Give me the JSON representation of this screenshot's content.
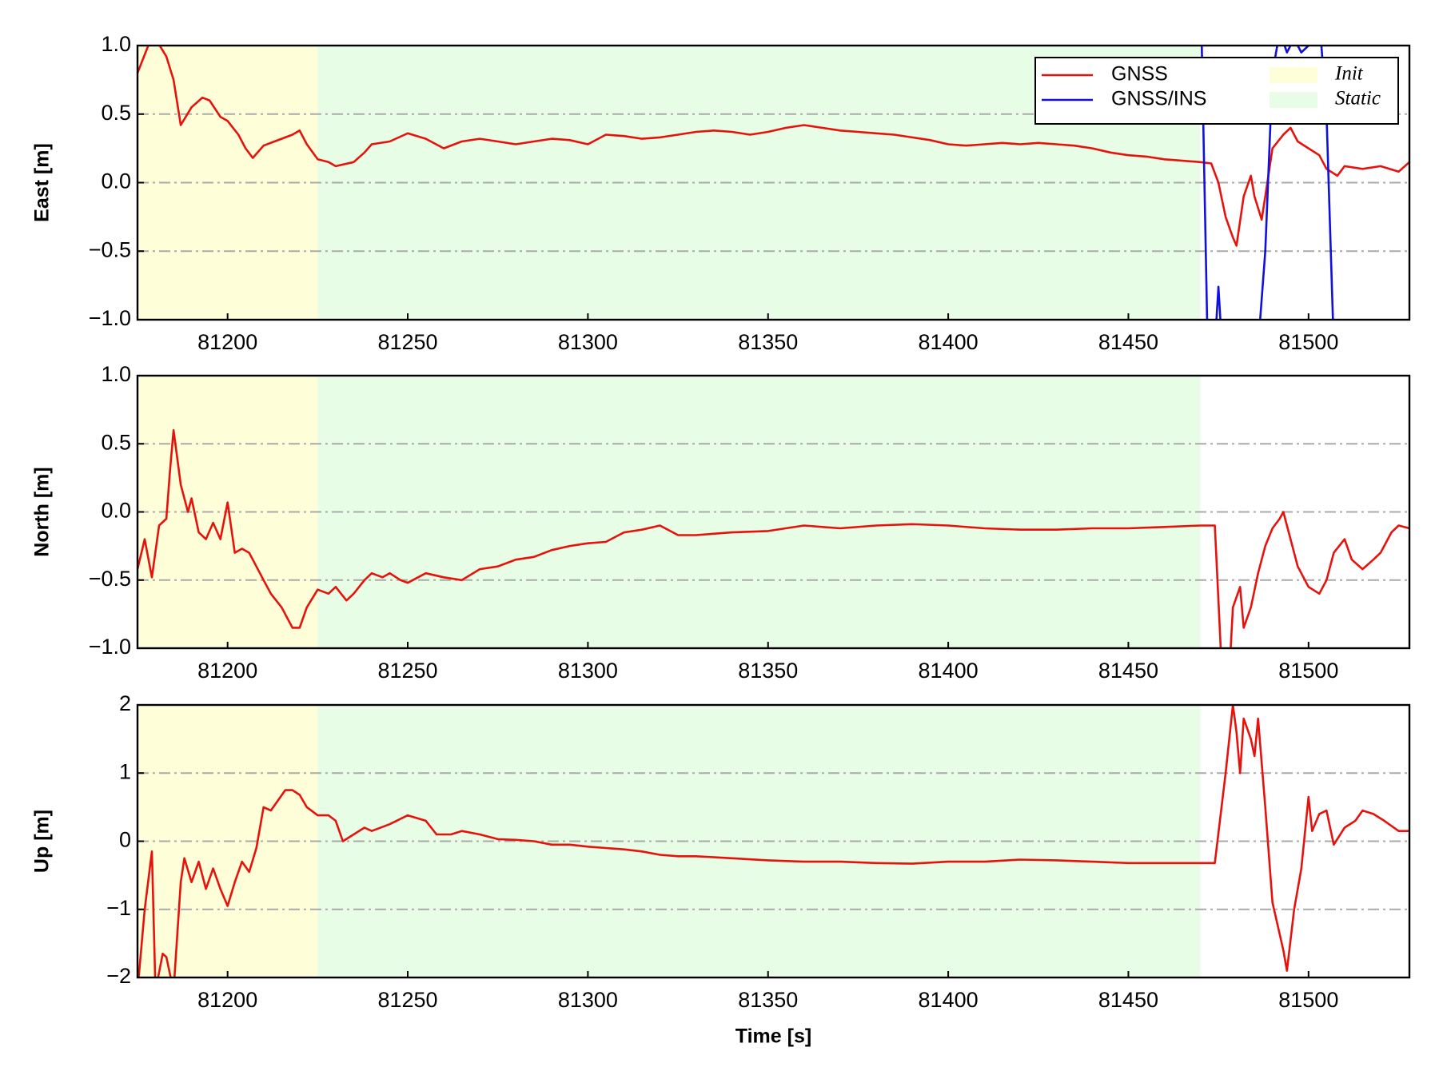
{
  "chart_data": [
    {
      "type": "line",
      "ylabel": "East [m]",
      "xlim": [
        81175,
        81528
      ],
      "xticks": [
        81200,
        81250,
        81300,
        81350,
        81400,
        81450,
        81500
      ],
      "ylim": [
        -1,
        1
      ],
      "yticks": [
        {
          "value": -1,
          "label": "−1.0"
        },
        {
          "value": -0.5,
          "label": "−0.5"
        },
        {
          "value": 0,
          "label": "0.0"
        },
        {
          "value": 0.5,
          "label": "0.5"
        },
        {
          "value": 1,
          "label": "1.0"
        }
      ],
      "grid": true,
      "legend": "upper right",
      "spans": [
        {
          "name": "Init",
          "start": 81175,
          "end": 81225,
          "color": "#fefed8"
        },
        {
          "name": "Static",
          "start": 81225,
          "end": 81470,
          "color": "#e8fde5"
        }
      ],
      "series": [
        {
          "name": "GNSS",
          "color": "#e8120c",
          "x": [
            81175,
            81178,
            81180,
            81183,
            81185,
            81187,
            81190,
            81193,
            81195,
            81198,
            81200,
            81203,
            81205,
            81207,
            81210,
            81213,
            81215,
            81218,
            81220,
            81222,
            81225,
            81228,
            81230,
            81235,
            81238,
            81240,
            81245,
            81250,
            81255,
            81260,
            81265,
            81270,
            81275,
            81280,
            81285,
            81290,
            81295,
            81300,
            81305,
            81310,
            81315,
            81320,
            81325,
            81330,
            81335,
            81340,
            81345,
            81350,
            81355,
            81360,
            81365,
            81370,
            81375,
            81380,
            81385,
            81390,
            81395,
            81400,
            81405,
            81410,
            81415,
            81420,
            81425,
            81430,
            81435,
            81440,
            81445,
            81450,
            81455,
            81460,
            81465,
            81470,
            81473,
            81475,
            81477,
            81479,
            81480,
            81482,
            81484,
            81485,
            81487,
            81488,
            81490,
            81493,
            81495,
            81497,
            81500,
            81503,
            81505,
            81508,
            81510,
            81515,
            81520,
            81525,
            81528
          ],
          "values": [
            0.8,
            1.0,
            1.05,
            0.92,
            0.75,
            0.42,
            0.55,
            0.62,
            0.6,
            0.48,
            0.45,
            0.35,
            0.25,
            0.18,
            0.27,
            0.3,
            0.32,
            0.35,
            0.38,
            0.28,
            0.17,
            0.15,
            0.12,
            0.15,
            0.22,
            0.28,
            0.3,
            0.36,
            0.32,
            0.25,
            0.3,
            0.32,
            0.3,
            0.28,
            0.3,
            0.32,
            0.31,
            0.28,
            0.35,
            0.34,
            0.32,
            0.33,
            0.35,
            0.37,
            0.38,
            0.37,
            0.35,
            0.37,
            0.4,
            0.42,
            0.4,
            0.38,
            0.37,
            0.36,
            0.35,
            0.33,
            0.31,
            0.28,
            0.27,
            0.28,
            0.29,
            0.28,
            0.29,
            0.28,
            0.27,
            0.25,
            0.22,
            0.2,
            0.19,
            0.17,
            0.16,
            0.15,
            0.14,
            0.0,
            -0.25,
            -0.4,
            -0.46,
            -0.1,
            0.05,
            -0.1,
            -0.27,
            -0.1,
            0.25,
            0.35,
            0.4,
            0.3,
            0.25,
            0.2,
            0.1,
            0.05,
            0.12,
            0.1,
            0.12,
            0.08,
            0.15
          ]
        },
        {
          "name": "GNSS/INS",
          "color": "#1010e0",
          "x": [
            81470,
            81472,
            81474,
            81475,
            81476,
            81486,
            81488,
            81490,
            81492,
            81494,
            81496,
            81498,
            81500,
            81503,
            81505,
            81507
          ],
          "values": [
            1.5,
            -1.2,
            -1.2,
            -0.76,
            -1.2,
            -1.2,
            -0.5,
            0.8,
            1.1,
            0.95,
            1.05,
            0.95,
            1.0,
            1.2,
            0.5,
            -1.2
          ]
        }
      ]
    },
    {
      "type": "line",
      "ylabel": "North [m]",
      "xlim": [
        81175,
        81528
      ],
      "xticks": [
        81200,
        81250,
        81300,
        81350,
        81400,
        81450,
        81500
      ],
      "ylim": [
        -1,
        1
      ],
      "yticks": [
        {
          "value": -1,
          "label": "−1.0"
        },
        {
          "value": -0.5,
          "label": "−0.5"
        },
        {
          "value": 0,
          "label": "0.0"
        },
        {
          "value": 0.5,
          "label": "0.5"
        },
        {
          "value": 1,
          "label": "1.0"
        }
      ],
      "grid": true,
      "spans": [
        {
          "start": 81175,
          "end": 81225,
          "color": "#fefed8"
        },
        {
          "start": 81225,
          "end": 81470,
          "color": "#e8fde5"
        }
      ],
      "series": [
        {
          "color": "#e8120c",
          "x": [
            81175,
            81177,
            81179,
            81181,
            81183,
            81184,
            81185,
            81187,
            81189,
            81190,
            81192,
            81194,
            81196,
            81198,
            81200,
            81202,
            81204,
            81206,
            81208,
            81210,
            81212,
            81215,
            81218,
            81220,
            81222,
            81225,
            81228,
            81230,
            81233,
            81235,
            81238,
            81240,
            81243,
            81245,
            81248,
            81250,
            81255,
            81260,
            81265,
            81270,
            81275,
            81280,
            81285,
            81290,
            81295,
            81300,
            81305,
            81310,
            81315,
            81320,
            81325,
            81330,
            81340,
            81350,
            81360,
            81370,
            81380,
            81390,
            81400,
            81410,
            81420,
            81430,
            81440,
            81450,
            81460,
            81470,
            81474,
            81476,
            81478,
            81479,
            81481,
            81482,
            81484,
            81486,
            81488,
            81490,
            81492,
            81493,
            81495,
            81497,
            81500,
            81503,
            81505,
            81507,
            81510,
            81512,
            81515,
            81518,
            81520,
            81523,
            81525,
            81528
          ],
          "values": [
            -0.42,
            -0.2,
            -0.48,
            -0.1,
            -0.05,
            0.3,
            0.6,
            0.2,
            0.0,
            0.1,
            -0.15,
            -0.2,
            -0.08,
            -0.2,
            0.07,
            -0.3,
            -0.27,
            -0.3,
            -0.4,
            -0.5,
            -0.6,
            -0.7,
            -0.85,
            -0.85,
            -0.7,
            -0.57,
            -0.6,
            -0.55,
            -0.65,
            -0.6,
            -0.5,
            -0.45,
            -0.48,
            -0.45,
            -0.5,
            -0.52,
            -0.45,
            -0.48,
            -0.5,
            -0.42,
            -0.4,
            -0.35,
            -0.33,
            -0.28,
            -0.25,
            -0.23,
            -0.22,
            -0.15,
            -0.13,
            -0.1,
            -0.17,
            -0.17,
            -0.15,
            -0.14,
            -0.1,
            -0.12,
            -0.1,
            -0.09,
            -0.1,
            -0.12,
            -0.13,
            -0.13,
            -0.12,
            -0.12,
            -0.11,
            -0.1,
            -0.1,
            -1.2,
            -1.2,
            -0.7,
            -0.55,
            -0.85,
            -0.7,
            -0.45,
            -0.25,
            -0.12,
            -0.05,
            0.0,
            -0.2,
            -0.4,
            -0.55,
            -0.6,
            -0.5,
            -0.3,
            -0.2,
            -0.35,
            -0.42,
            -0.35,
            -0.3,
            -0.15,
            -0.1,
            -0.12
          ]
        }
      ]
    },
    {
      "type": "line",
      "ylabel": "Up [m]",
      "xlabel": "Time [s]",
      "xlim": [
        81175,
        81528
      ],
      "xticks": [
        81200,
        81250,
        81300,
        81350,
        81400,
        81450,
        81500
      ],
      "ylim": [
        -2,
        2
      ],
      "yticks": [
        {
          "value": -2,
          "label": "−2"
        },
        {
          "value": -1,
          "label": "−1"
        },
        0,
        1,
        2
      ],
      "grid": true,
      "spans": [
        {
          "start": 81175,
          "end": 81225,
          "color": "#fefed8"
        },
        {
          "start": 81225,
          "end": 81470,
          "color": "#e8fde5"
        }
      ],
      "series": [
        {
          "color": "#e8120c",
          "x": [
            81175,
            81177,
            81179,
            81180,
            81182,
            81183,
            81185,
            81187,
            81188,
            81190,
            81192,
            81194,
            81196,
            81198,
            81200,
            81202,
            81204,
            81206,
            81208,
            81210,
            81212,
            81214,
            81216,
            81218,
            81220,
            81222,
            81225,
            81228,
            81230,
            81232,
            81235,
            81238,
            81240,
            81245,
            81250,
            81255,
            81258,
            81262,
            81265,
            81270,
            81275,
            81280,
            81285,
            81290,
            81295,
            81300,
            81305,
            81310,
            81315,
            81320,
            81325,
            81330,
            81340,
            81350,
            81360,
            81370,
            81380,
            81390,
            81400,
            81410,
            81420,
            81430,
            81440,
            81450,
            81460,
            81470,
            81474,
            81477,
            81479,
            81480,
            81481,
            81482,
            81484,
            81485,
            81486,
            81488,
            81490,
            81493,
            81494,
            81496,
            81498,
            81500,
            81501,
            81503,
            81505,
            81507,
            81510,
            81513,
            81515,
            81518,
            81521,
            81525,
            81528
          ],
          "values": [
            -2.2,
            -1.0,
            -0.15,
            -2.2,
            -1.65,
            -1.7,
            -2.2,
            -0.6,
            -0.25,
            -0.6,
            -0.3,
            -0.7,
            -0.4,
            -0.7,
            -0.95,
            -0.6,
            -0.3,
            -0.45,
            -0.1,
            0.5,
            0.45,
            0.6,
            0.75,
            0.75,
            0.68,
            0.5,
            0.38,
            0.38,
            0.3,
            0.0,
            0.1,
            0.2,
            0.15,
            0.25,
            0.38,
            0.3,
            0.1,
            0.1,
            0.15,
            0.1,
            0.03,
            0.02,
            0.0,
            -0.05,
            -0.05,
            -0.08,
            -0.1,
            -0.12,
            -0.15,
            -0.2,
            -0.22,
            -0.22,
            -0.25,
            -0.28,
            -0.3,
            -0.3,
            -0.32,
            -0.33,
            -0.3,
            -0.3,
            -0.27,
            -0.28,
            -0.3,
            -0.32,
            -0.32,
            -0.32,
            -0.32,
            1.0,
            2.0,
            1.6,
            1.0,
            1.8,
            1.5,
            1.25,
            1.8,
            0.5,
            -0.9,
            -1.6,
            -1.9,
            -1.0,
            -0.4,
            0.65,
            0.15,
            0.4,
            0.45,
            -0.05,
            0.2,
            0.3,
            0.45,
            0.4,
            0.3,
            0.15,
            0.15
          ]
        }
      ]
    }
  ]
}
